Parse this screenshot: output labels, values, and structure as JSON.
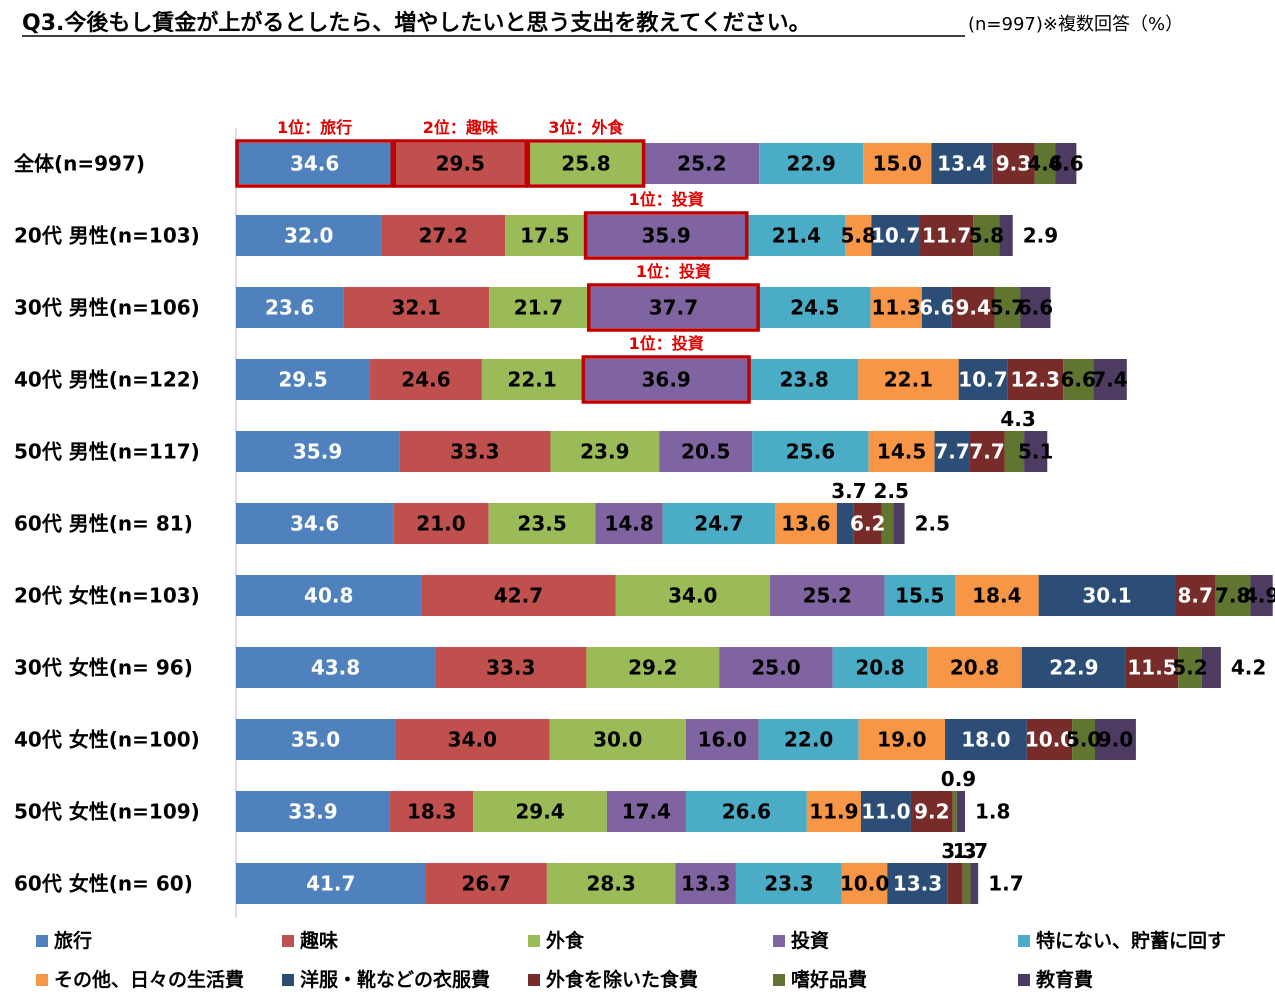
{
  "chart_data": {
    "type": "bar",
    "orientation": "horizontal",
    "stacked": true,
    "title": "Q3.今後もし賃金が上がるとしたら、増やしたいと思う支出を教えてください。",
    "subtitle": "(n=997)※複数回答（%）",
    "categories": [
      "全体(n=997)",
      "20代 男性(n=103)",
      "30代 男性(n=106)",
      "40代 男性(n=122)",
      "50代 男性(n=117)",
      "60代 男性(n=  81)",
      "20代 女性(n=103)",
      "30代 女性(n=  96)",
      "40代 女性(n=100)",
      "50代 女性(n=109)",
      "60代 女性(n=  60)"
    ],
    "series": [
      {
        "name": "旅行",
        "color": "#4f81bd",
        "values": [
          34.6,
          32.0,
          23.6,
          29.5,
          35.9,
          34.6,
          40.8,
          43.8,
          35.0,
          33.9,
          41.7
        ]
      },
      {
        "name": "趣味",
        "color": "#c0504d",
        "values": [
          29.5,
          27.2,
          32.1,
          24.6,
          33.3,
          21.0,
          42.7,
          33.3,
          34.0,
          18.3,
          26.7
        ]
      },
      {
        "name": "外食",
        "color": "#9bbb59",
        "values": [
          25.8,
          17.5,
          21.7,
          22.1,
          23.9,
          23.5,
          34.0,
          29.2,
          30.0,
          29.4,
          28.3
        ]
      },
      {
        "name": "投資",
        "color": "#8064a2",
        "values": [
          25.2,
          35.9,
          37.7,
          36.9,
          20.5,
          14.8,
          25.2,
          25.0,
          16.0,
          17.4,
          13.3
        ]
      },
      {
        "name": "特にない、貯蓄に回す",
        "color": "#4bacc6",
        "values": [
          22.9,
          21.4,
          24.5,
          23.8,
          25.6,
          24.7,
          15.5,
          20.8,
          22.0,
          26.6,
          23.3
        ]
      },
      {
        "name": "その他、日々の生活費",
        "color": "#f79646",
        "values": [
          15.0,
          5.8,
          11.3,
          22.1,
          14.5,
          13.6,
          18.4,
          20.8,
          19.0,
          11.9,
          10.0
        ]
      },
      {
        "name": "洋服・靴などの衣服費",
        "color": "#2c4d75",
        "values": [
          13.4,
          10.7,
          6.6,
          10.7,
          7.7,
          3.7,
          30.1,
          22.9,
          18.0,
          11.0,
          13.3
        ]
      },
      {
        "name": "外食を除いた食費",
        "color": "#772c2a",
        "values": [
          9.3,
          11.7,
          9.4,
          12.3,
          7.7,
          6.2,
          8.7,
          11.5,
          10.0,
          9.2,
          3.3
        ]
      },
      {
        "name": "嗜好品費",
        "color": "#5f7530",
        "values": [
          4.6,
          5.8,
          5.7,
          6.6,
          4.3,
          2.5,
          7.8,
          5.2,
          5.0,
          0.9,
          1.7
        ]
      },
      {
        "name": "教育費",
        "color": "#4d3b62",
        "values": [
          4.6,
          2.9,
          6.6,
          7.4,
          5.1,
          2.5,
          4.9,
          4.2,
          9.0,
          1.8,
          1.7
        ]
      }
    ],
    "rank_annotations": [
      {
        "row": 0,
        "series": 0,
        "text": "1位：旅行"
      },
      {
        "row": 0,
        "series": 1,
        "text": "2位：趣味"
      },
      {
        "row": 0,
        "series": 2,
        "text": "3位：外食"
      },
      {
        "row": 1,
        "series": 3,
        "text": "1位：投資"
      },
      {
        "row": 2,
        "series": 3,
        "text": "1位：投資"
      },
      {
        "row": 3,
        "series": 3,
        "text": "1位：投資"
      }
    ],
    "highlight_color": "#c00000",
    "legend_position": "bottom"
  }
}
